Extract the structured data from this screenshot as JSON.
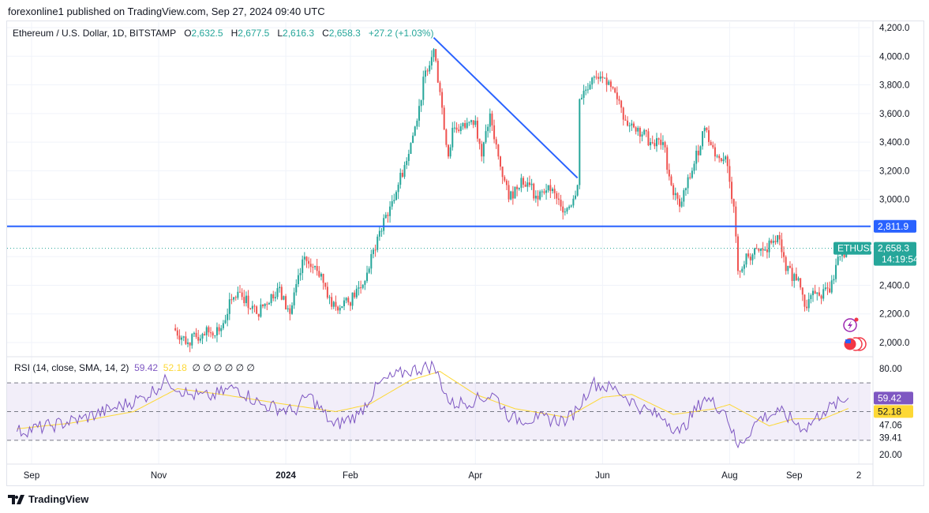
{
  "header": {
    "published": "forexonline1 published on TradingView.com, Sep 27, 2024 09:40 UTC"
  },
  "legend": {
    "symbol": "Ethereum / U.S. Dollar, 1D, BITSTAMP",
    "o_label": "O",
    "o": "2,632.5",
    "h_label": "H",
    "h": "2,677.5",
    "l_label": "L",
    "l": "2,616.3",
    "c_label": "C",
    "c": "2,658.3",
    "change": "+27.2 (+1.03%)"
  },
  "rsi_legend": {
    "label": "RSI (14, close, SMA, 14, 2)",
    "rsi": "59.42",
    "sma": "52.18",
    "empty": "∅ ∅ ∅ ∅ ∅ ∅"
  },
  "price_badges": {
    "level": "2,811.9",
    "ticker": "ETHUSD",
    "last": "2,658.3",
    "countdown": "14:19:54"
  },
  "rsi_badges": {
    "rsi": "59.42",
    "sma": "52.18"
  },
  "brand": "TradingView",
  "colors": {
    "up": "#26a69a",
    "down": "#ef5350",
    "line": "#2962ff",
    "rsi": "#7e57c2",
    "sma": "#fdd835"
  },
  "chart_data": {
    "type": "candlestick",
    "ylim": [
      1950,
      4250
    ],
    "yticks": [
      2000,
      2200,
      2400,
      2600,
      2800,
      3000,
      3200,
      3400,
      3600,
      3800,
      4000,
      4200
    ],
    "ytick_labels": [
      "2,000.0",
      "2,200.0",
      "2,400.0",
      "2,600.0",
      "2,800.0",
      "3,000.0",
      "3,200.0",
      "3,400.0",
      "3,600.0",
      "3,800.0",
      "4,000.0",
      "4,200.0"
    ],
    "xrange": [
      "2023-08-25",
      "2024-10-06"
    ],
    "xticks": [
      {
        "date": "2023-09-01",
        "label": "Sep"
      },
      {
        "date": "2023-11-01",
        "label": "Nov"
      },
      {
        "date": "2024-01-01",
        "label": "2024"
      },
      {
        "date": "2024-02-01",
        "label": "Feb"
      },
      {
        "date": "2024-04-01",
        "label": "Apr"
      },
      {
        "date": "2024-06-01",
        "label": "Jun"
      },
      {
        "date": "2024-08-01",
        "label": "Aug"
      },
      {
        "date": "2024-09-01",
        "label": "Sep"
      },
      {
        "date": "2024-10-02",
        "label": "2"
      }
    ],
    "close_points": [
      [
        "2023-11-08",
        2100
      ],
      [
        "2023-11-15",
        2000
      ],
      [
        "2023-11-22",
        2060
      ],
      [
        "2023-12-01",
        2100
      ],
      [
        "2023-12-06",
        2300
      ],
      [
        "2023-12-10",
        2350
      ],
      [
        "2023-12-18",
        2200
      ],
      [
        "2023-12-28",
        2380
      ],
      [
        "2024-01-03",
        2200
      ],
      [
        "2024-01-10",
        2600
      ],
      [
        "2024-01-12",
        2550
      ],
      [
        "2024-01-18",
        2480
      ],
      [
        "2024-01-23",
        2250
      ],
      [
        "2024-01-31",
        2280
      ],
      [
        "2024-02-08",
        2430
      ],
      [
        "2024-02-15",
        2780
      ],
      [
        "2024-02-20",
        2950
      ],
      [
        "2024-02-27",
        3240
      ],
      [
        "2024-03-04",
        3550
      ],
      [
        "2024-03-08",
        3900
      ],
      [
        "2024-03-12",
        4050
      ],
      [
        "2024-03-15",
        3750
      ],
      [
        "2024-03-19",
        3300
      ],
      [
        "2024-03-21",
        3500
      ],
      [
        "2024-03-27",
        3500
      ],
      [
        "2024-04-01",
        3550
      ],
      [
        "2024-04-04",
        3300
      ],
      [
        "2024-04-08",
        3600
      ],
      [
        "2024-04-12",
        3300
      ],
      [
        "2024-04-17",
        3000
      ],
      [
        "2024-04-23",
        3150
      ],
      [
        "2024-04-27",
        3100
      ],
      [
        "2024-05-01",
        3000
      ],
      [
        "2024-05-06",
        3100
      ],
      [
        "2024-05-12",
        2950
      ],
      [
        "2024-05-16",
        2950
      ],
      [
        "2024-05-20",
        3100
      ],
      [
        "2024-05-21",
        3700
      ],
      [
        "2024-05-27",
        3850
      ],
      [
        "2024-06-03",
        3800
      ],
      [
        "2024-06-08",
        3700
      ],
      [
        "2024-06-12",
        3550
      ],
      [
        "2024-06-18",
        3500
      ],
      [
        "2024-06-24",
        3400
      ],
      [
        "2024-06-30",
        3400
      ],
      [
        "2024-07-04",
        3100
      ],
      [
        "2024-07-08",
        2950
      ],
      [
        "2024-07-14",
        3200
      ],
      [
        "2024-07-20",
        3500
      ],
      [
        "2024-07-25",
        3300
      ],
      [
        "2024-07-30",
        3300
      ],
      [
        "2024-08-03",
        2950
      ],
      [
        "2024-08-05",
        2500
      ],
      [
        "2024-08-10",
        2600
      ],
      [
        "2024-08-18",
        2650
      ],
      [
        "2024-08-24",
        2750
      ],
      [
        "2024-08-28",
        2500
      ],
      [
        "2024-09-03",
        2450
      ],
      [
        "2024-09-06",
        2250
      ],
      [
        "2024-09-12",
        2350
      ],
      [
        "2024-09-18",
        2350
      ],
      [
        "2024-09-22",
        2600
      ],
      [
        "2024-09-27",
        2658.3
      ]
    ],
    "horizontal_line": 2811.9,
    "trendline": [
      [
        "2024-03-12",
        4130
      ],
      [
        "2024-05-20",
        3150
      ]
    ],
    "rsi": {
      "ylim": [
        15,
        88
      ],
      "ticks": [
        80,
        47.06,
        39.41,
        20
      ],
      "tick_labels": [
        "80.00",
        "47.06",
        "39.41",
        "20.00"
      ],
      "bands": [
        70,
        50,
        30
      ],
      "rsi_points": [
        [
          "2023-08-25",
          36
        ],
        [
          "2023-09-10",
          40
        ],
        [
          "2023-09-25",
          45
        ],
        [
          "2023-10-10",
          52
        ],
        [
          "2023-10-25",
          60
        ],
        [
          "2023-11-05",
          72
        ],
        [
          "2023-11-15",
          62
        ],
        [
          "2023-11-25",
          60
        ],
        [
          "2023-12-08",
          67
        ],
        [
          "2023-12-20",
          55
        ],
        [
          "2024-01-05",
          50
        ],
        [
          "2024-01-12",
          62
        ],
        [
          "2024-01-24",
          40
        ],
        [
          "2024-02-05",
          48
        ],
        [
          "2024-02-15",
          70
        ],
        [
          "2024-02-28",
          78
        ],
        [
          "2024-03-12",
          82
        ],
        [
          "2024-03-20",
          55
        ],
        [
          "2024-04-01",
          58
        ],
        [
          "2024-04-10",
          62
        ],
        [
          "2024-04-18",
          45
        ],
        [
          "2024-05-01",
          45
        ],
        [
          "2024-05-15",
          44
        ],
        [
          "2024-05-20",
          52
        ],
        [
          "2024-05-27",
          70
        ],
        [
          "2024-06-08",
          65
        ],
        [
          "2024-06-20",
          52
        ],
        [
          "2024-07-01",
          45
        ],
        [
          "2024-07-08",
          35
        ],
        [
          "2024-07-20",
          60
        ],
        [
          "2024-07-30",
          50
        ],
        [
          "2024-08-05",
          25
        ],
        [
          "2024-08-15",
          45
        ],
        [
          "2024-08-25",
          50
        ],
        [
          "2024-09-06",
          38
        ],
        [
          "2024-09-15",
          50
        ],
        [
          "2024-09-27",
          59.42
        ]
      ],
      "sma_points": [
        [
          "2023-08-25",
          38
        ],
        [
          "2023-09-20",
          42
        ],
        [
          "2023-10-20",
          50
        ],
        [
          "2023-11-10",
          66
        ],
        [
          "2023-12-01",
          62
        ],
        [
          "2024-01-01",
          55
        ],
        [
          "2024-01-25",
          50
        ],
        [
          "2024-02-10",
          55
        ],
        [
          "2024-03-01",
          72
        ],
        [
          "2024-03-15",
          78
        ],
        [
          "2024-04-01",
          62
        ],
        [
          "2024-04-20",
          52
        ],
        [
          "2024-05-15",
          46
        ],
        [
          "2024-06-01",
          60
        ],
        [
          "2024-06-15",
          62
        ],
        [
          "2024-07-05",
          48
        ],
        [
          "2024-07-25",
          52
        ],
        [
          "2024-08-01",
          55
        ],
        [
          "2024-08-20",
          40
        ],
        [
          "2024-09-01",
          45
        ],
        [
          "2024-09-15",
          45
        ],
        [
          "2024-09-27",
          52.18
        ]
      ]
    }
  }
}
